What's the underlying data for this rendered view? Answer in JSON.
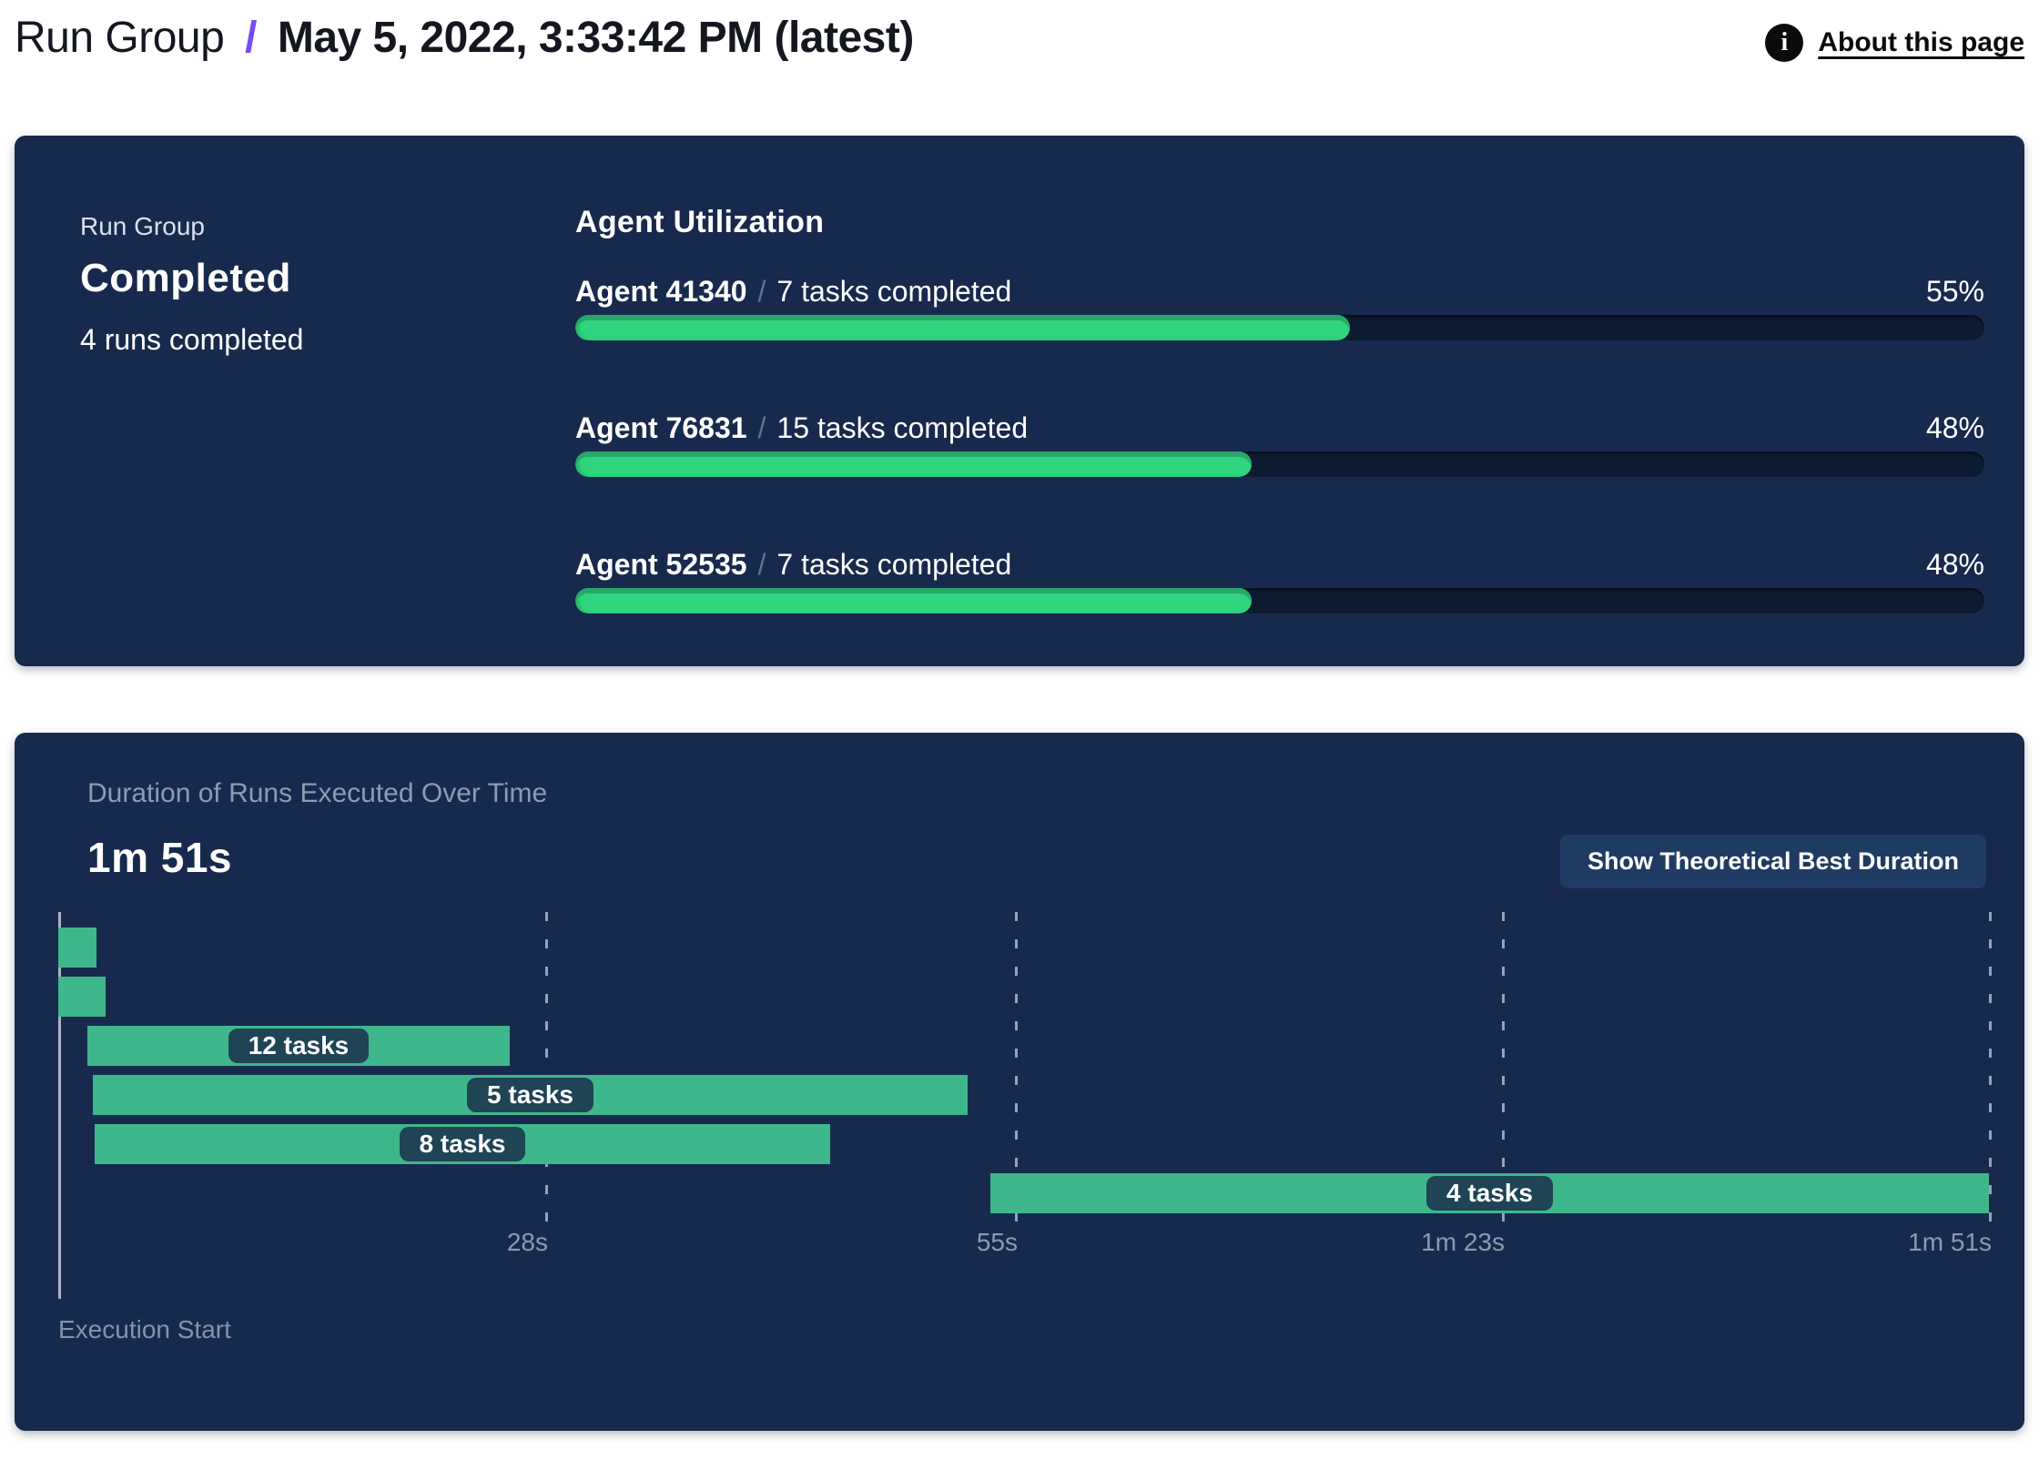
{
  "header": {
    "breadcrumb_root": "Run Group",
    "separator": "/",
    "title": "May 5, 2022, 3:33:42 PM (latest)",
    "about_link": "About this page"
  },
  "summary_card": {
    "label": "Run Group",
    "status": "Completed",
    "runs_completed": "4 runs completed",
    "utilization": {
      "title": "Agent Utilization",
      "separator": "/",
      "agents": [
        {
          "name": "Agent 41340",
          "tasks": "7 tasks completed",
          "percent": 55,
          "percent_label": "55%"
        },
        {
          "name": "Agent 76831",
          "tasks": "15 tasks completed",
          "percent": 48,
          "percent_label": "48%"
        },
        {
          "name": "Agent 52535",
          "tasks": "7 tasks completed",
          "percent": 48,
          "percent_label": "48%"
        }
      ]
    }
  },
  "duration_card": {
    "title": "Duration of Runs Executed Over Time",
    "total_duration": "1m 51s",
    "button_label": "Show Theoretical Best Duration",
    "axis_label": "Execution Start"
  },
  "chart_data": {
    "type": "gantt",
    "title": "Duration of Runs Executed Over Time",
    "x_max_seconds": 111,
    "x_axis_start_label": "Execution Start",
    "grid": "dashed-vertical",
    "ticks": [
      {
        "label": "28s",
        "seconds": 28
      },
      {
        "label": "55s",
        "seconds": 55
      },
      {
        "label": "1m 23s",
        "seconds": 83
      },
      {
        "label": "1m 51s",
        "seconds": 111
      }
    ],
    "runs": [
      {
        "start_s": 0.0,
        "end_s": 2.2,
        "label": ""
      },
      {
        "start_s": 0.0,
        "end_s": 2.7,
        "label": ""
      },
      {
        "start_s": 1.7,
        "end_s": 26.0,
        "label": "12 tasks"
      },
      {
        "start_s": 2.0,
        "end_s": 52.3,
        "label": "5 tasks"
      },
      {
        "start_s": 2.1,
        "end_s": 44.4,
        "label": "8 tasks"
      },
      {
        "start_s": 53.6,
        "end_s": 111.0,
        "label": "4 tasks"
      }
    ]
  },
  "colors": {
    "card_navy": "#172A4D",
    "progress_track": "#0C1A30",
    "progress_fill": "#2ED47E",
    "progress_fill_rim": "#29A76B",
    "gantt_bar": "#3EB78C",
    "chip_bg": "#1E4456",
    "button_bg": "#1E3C61",
    "muted_text": "#8E9AAD",
    "breadcrumb_accent": "#7A4BF5"
  }
}
